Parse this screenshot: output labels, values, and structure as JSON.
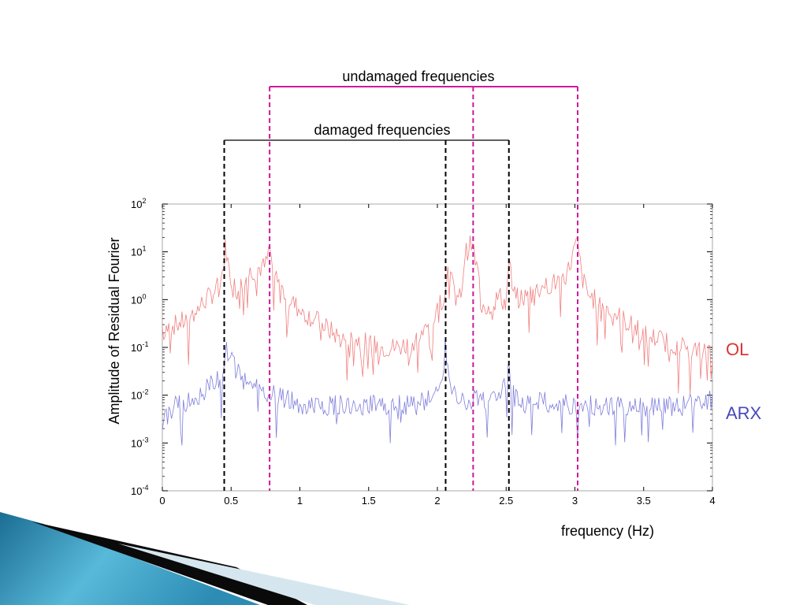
{
  "chart_data": {
    "type": "line",
    "xlabel": "frequency (Hz)",
    "ylabel": "Amplitude of Residual Fourier",
    "xlim": [
      0,
      4
    ],
    "ylim": [
      0.0001,
      100
    ],
    "yscale": "log",
    "x_ticks": [
      {
        "value": 0,
        "label": "0"
      },
      {
        "value": 0.5,
        "label": "0.5"
      },
      {
        "value": 1,
        "label": "1"
      },
      {
        "value": 1.5,
        "label": "1.5"
      },
      {
        "value": 2,
        "label": "2"
      },
      {
        "value": 2.5,
        "label": "2.5"
      },
      {
        "value": 3,
        "label": "3"
      },
      {
        "value": 3.5,
        "label": "3.5"
      },
      {
        "value": 4,
        "label": "4"
      }
    ],
    "y_ticks": [
      {
        "value": 0.0001,
        "base": "10",
        "exp": "-4"
      },
      {
        "value": 0.001,
        "base": "10",
        "exp": "-3"
      },
      {
        "value": 0.01,
        "base": "10",
        "exp": "-2"
      },
      {
        "value": 0.1,
        "base": "10",
        "exp": "-1"
      },
      {
        "value": 1,
        "base": "10",
        "exp": "0"
      },
      {
        "value": 10,
        "base": "10",
        "exp": "1"
      },
      {
        "value": 100,
        "base": "10",
        "exp": "2"
      }
    ],
    "grid": false,
    "legend_placement": "right",
    "series": [
      {
        "name": "OL",
        "color": "#f08080",
        "x": [
          0,
          0.1,
          0.2,
          0.3,
          0.35,
          0.4,
          0.44,
          0.46,
          0.48,
          0.5,
          0.55,
          0.6,
          0.65,
          0.7,
          0.75,
          0.78,
          0.8,
          0.85,
          0.9,
          1.0,
          1.1,
          1.2,
          1.3,
          1.4,
          1.5,
          1.6,
          1.7,
          1.8,
          1.9,
          1.95,
          2.0,
          2.05,
          2.08,
          2.1,
          2.15,
          2.18,
          2.2,
          2.25,
          2.3,
          2.35,
          2.4,
          2.45,
          2.5,
          2.52,
          2.55,
          2.6,
          2.7,
          2.8,
          2.9,
          2.95,
          3.0,
          3.02,
          3.05,
          3.1,
          3.2,
          3.3,
          3.4,
          3.5,
          3.6,
          3.7,
          3.8,
          3.9,
          4.0
        ],
        "y": [
          0.25,
          0.3,
          0.4,
          0.9,
          1.2,
          1.8,
          4,
          15,
          5,
          2.5,
          1.5,
          3,
          4,
          4.5,
          5,
          12,
          5,
          2,
          1.2,
          0.6,
          0.4,
          0.25,
          0.15,
          0.15,
          0.12,
          0.1,
          0.1,
          0.12,
          0.2,
          0.3,
          0.6,
          1.5,
          6,
          2.5,
          0.8,
          2,
          9,
          15,
          3,
          0.7,
          0.8,
          1.2,
          0.8,
          8,
          1.2,
          1,
          1.5,
          2,
          2.5,
          4,
          12,
          15,
          3,
          1.2,
          0.8,
          0.5,
          0.3,
          0.2,
          0.15,
          0.12,
          0.1,
          0.08,
          0.08
        ]
      },
      {
        "name": "ARX",
        "color": "#7f7fdc",
        "x": [
          0,
          0.1,
          0.2,
          0.3,
          0.35,
          0.4,
          0.44,
          0.46,
          0.5,
          0.55,
          0.6,
          0.7,
          0.8,
          0.9,
          1.0,
          1.2,
          1.4,
          1.6,
          1.8,
          1.9,
          2.0,
          2.04,
          2.06,
          2.1,
          2.2,
          2.3,
          2.4,
          2.45,
          2.5,
          2.52,
          2.55,
          2.6,
          2.8,
          3.0,
          3.2,
          3.4,
          3.6,
          3.8,
          3.9,
          4.0
        ],
        "y": [
          0.003,
          0.006,
          0.008,
          0.012,
          0.02,
          0.02,
          0.03,
          0.1,
          0.05,
          0.03,
          0.02,
          0.015,
          0.01,
          0.008,
          0.006,
          0.006,
          0.006,
          0.006,
          0.006,
          0.007,
          0.012,
          0.03,
          0.12,
          0.01,
          0.007,
          0.008,
          0.008,
          0.01,
          0.015,
          0.04,
          0.01,
          0.007,
          0.007,
          0.006,
          0.006,
          0.006,
          0.006,
          0.006,
          0.007,
          0.008
        ]
      }
    ],
    "annotations": [
      {
        "text": "undamaged frequencies",
        "frequencies": [
          0.78,
          2.26,
          3.02
        ],
        "color": "#cc1a99"
      },
      {
        "text": "damaged frequencies",
        "frequencies": [
          0.45,
          2.06,
          2.52
        ],
        "color": "#000000"
      }
    ]
  }
}
